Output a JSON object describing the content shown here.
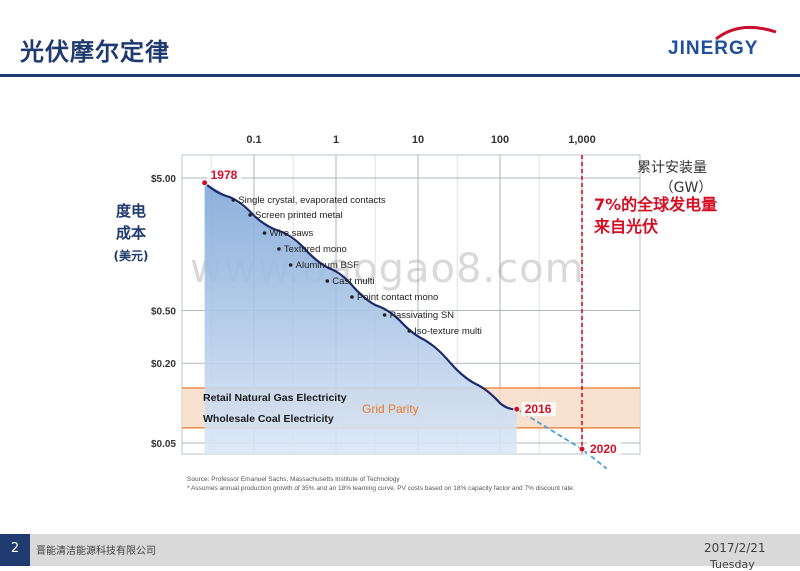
{
  "slide": {
    "title": "光伏摩尔定律",
    "page_number": "2",
    "company": "晋能清洁能源科技有限公司",
    "date": "2017/2/21",
    "day": "Tuesday",
    "watermark": "www.baogao8.com"
  },
  "logo": {
    "text": "JINERGY",
    "color": "#1f4e9a",
    "swoosh_color": "#c8102e"
  },
  "chart_data": {
    "type": "line",
    "x_axis": {
      "scale": "log",
      "label": "累计安装量",
      "unit": "（GW）",
      "ticks": [
        "0.1",
        "1",
        "10",
        "100",
        "1,000"
      ],
      "tick_values": [
        0.1,
        1,
        10,
        100,
        1000
      ]
    },
    "y_axis": {
      "scale": "log",
      "label": [
        "度电",
        "成本",
        "(美元)"
      ],
      "ticks": [
        "$5.00",
        "$0.50",
        "$0.20",
        "$0.05"
      ],
      "tick_values": [
        5.0,
        0.5,
        0.2,
        0.05
      ]
    },
    "series": [
      {
        "x": [
          0.025,
          0.05,
          0.1,
          0.2,
          0.4,
          0.8,
          1.5,
          3,
          6,
          12,
          25,
          50,
          100,
          160
        ],
        "y": [
          4.6,
          3.6,
          2.6,
          2.0,
          1.5,
          1.05,
          0.8,
          0.55,
          0.42,
          0.3,
          0.2,
          0.14,
          0.1,
          0.09
        ]
      }
    ],
    "projection": {
      "x": [
        160,
        1000,
        2000
      ],
      "y": [
        0.09,
        0.045,
        0.032
      ]
    },
    "points": [
      {
        "label": "1978",
        "x": 0.025,
        "y": 4.6
      },
      {
        "label": "2016",
        "x": 160,
        "y": 0.09
      },
      {
        "label": "2020",
        "x": 1000,
        "y": 0.045
      }
    ],
    "milestones": [
      {
        "label": "Single crystal, evaporated contacts",
        "x": 0.05
      },
      {
        "label": "Screen printed metal",
        "x": 0.08
      },
      {
        "label": "Wire saws",
        "x": 0.12
      },
      {
        "label": "Textured mono",
        "x": 0.18
      },
      {
        "label": "Aluminum BSF",
        "x": 0.25
      },
      {
        "label": "Cast multi",
        "x": 0.7
      },
      {
        "label": "Point contact mono",
        "x": 1.4
      },
      {
        "label": "Passivating SN",
        "x": 3.5
      },
      {
        "label": "Iso-texture multi",
        "x": 7
      }
    ],
    "band": {
      "upper_label": "Retail Natural Gas Electricity",
      "middle_label": "Grid Parity",
      "lower_label": "Wholesale Coal Electricity",
      "y_top": 0.13,
      "y_bottom": 0.065
    },
    "annotation": {
      "lines": [
        "7%的全球发电量",
        "来自光伏"
      ],
      "x": 1000
    },
    "source": [
      "Source: Professor Emanuel Sachs, Massachusetts Institute of Technology",
      "* Assumes annual production growth of 35% and an 18% learning curve. PV costs based on 18% capacity factor and 7% discount rate."
    ],
    "colors": {
      "curve": "#1a2a6c",
      "fill_top": "#7fa7d8",
      "fill_bottom": "#dbe7f5",
      "band": "#f7dcc6",
      "band_line": "#e87a2a",
      "red": "#d40f23",
      "grid": "#9aa2aa",
      "projection": "#4a9fd4"
    }
  }
}
